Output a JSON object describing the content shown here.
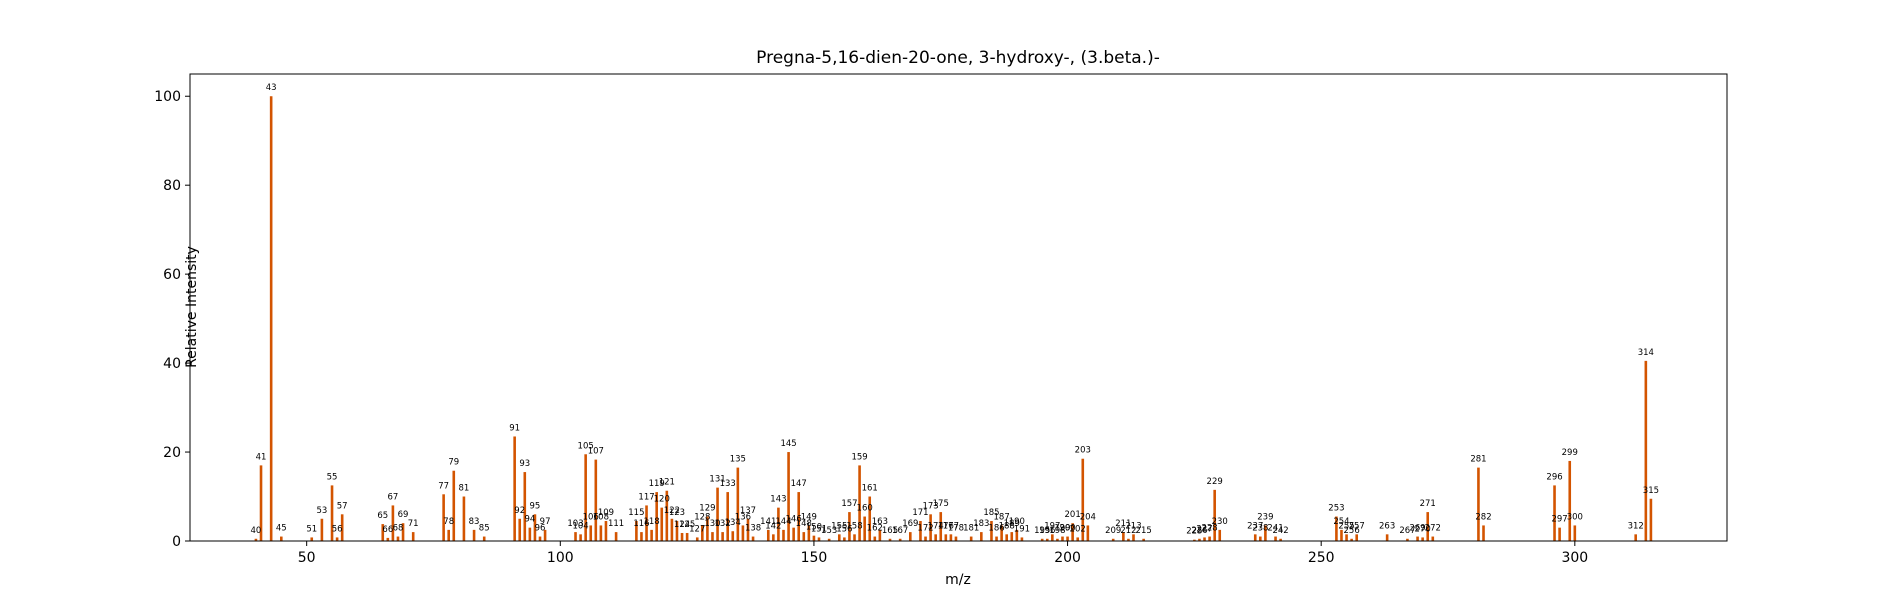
{
  "chart_data": {
    "type": "bar",
    "title": "Pregna-5,16-dien-20-one, 3-hydroxy-, (3.beta.)-",
    "xlabel": "m/z",
    "ylabel": "Relative Intensity",
    "xlim": [
      27,
      330
    ],
    "ylim": [
      0,
      105
    ],
    "xticks": [
      50,
      100,
      150,
      200,
      250,
      300
    ],
    "yticks": [
      0,
      20,
      40,
      60,
      80,
      100
    ],
    "grid": false,
    "bar_color": "#d35400",
    "peaks": [
      {
        "mz": 40,
        "intensity": 0.5
      },
      {
        "mz": 41,
        "intensity": 17
      },
      {
        "mz": 43,
        "intensity": 100
      },
      {
        "mz": 45,
        "intensity": 1
      },
      {
        "mz": 51,
        "intensity": 0.8
      },
      {
        "mz": 53,
        "intensity": 5
      },
      {
        "mz": 55,
        "intensity": 12.5
      },
      {
        "mz": 56,
        "intensity": 0.8
      },
      {
        "mz": 57,
        "intensity": 6
      },
      {
        "mz": 65,
        "intensity": 3.8
      },
      {
        "mz": 66,
        "intensity": 0.7
      },
      {
        "mz": 67,
        "intensity": 8
      },
      {
        "mz": 68,
        "intensity": 1
      },
      {
        "mz": 69,
        "intensity": 4
      },
      {
        "mz": 71,
        "intensity": 2
      },
      {
        "mz": 77,
        "intensity": 10.5
      },
      {
        "mz": 78,
        "intensity": 2.5
      },
      {
        "mz": 79,
        "intensity": 15.8
      },
      {
        "mz": 81,
        "intensity": 10
      },
      {
        "mz": 83,
        "intensity": 2.5
      },
      {
        "mz": 85,
        "intensity": 1
      },
      {
        "mz": 91,
        "intensity": 23.5
      },
      {
        "mz": 92,
        "intensity": 5
      },
      {
        "mz": 93,
        "intensity": 15.5
      },
      {
        "mz": 94,
        "intensity": 3
      },
      {
        "mz": 95,
        "intensity": 6
      },
      {
        "mz": 96,
        "intensity": 1
      },
      {
        "mz": 97,
        "intensity": 2.5
      },
      {
        "mz": 103,
        "intensity": 2
      },
      {
        "mz": 104,
        "intensity": 1.5
      },
      {
        "mz": 105,
        "intensity": 19.5
      },
      {
        "mz": 106,
        "intensity": 3.5
      },
      {
        "mz": 107,
        "intensity": 18.3
      },
      {
        "mz": 108,
        "intensity": 3.5
      },
      {
        "mz": 109,
        "intensity": 4.5
      },
      {
        "mz": 111,
        "intensity": 2
      },
      {
        "mz": 115,
        "intensity": 4.5
      },
      {
        "mz": 116,
        "intensity": 2
      },
      {
        "mz": 117,
        "intensity": 8
      },
      {
        "mz": 118,
        "intensity": 2.5
      },
      {
        "mz": 119,
        "intensity": 11
      },
      {
        "mz": 120,
        "intensity": 7.5
      },
      {
        "mz": 121,
        "intensity": 11.3
      },
      {
        "mz": 122,
        "intensity": 5
      },
      {
        "mz": 123,
        "intensity": 4.5
      },
      {
        "mz": 124,
        "intensity": 1.8
      },
      {
        "mz": 125,
        "intensity": 1.8
      },
      {
        "mz": 127,
        "intensity": 0.8
      },
      {
        "mz": 128,
        "intensity": 3.5
      },
      {
        "mz": 129,
        "intensity": 5.5
      },
      {
        "mz": 130,
        "intensity": 2
      },
      {
        "mz": 131,
        "intensity": 12
      },
      {
        "mz": 132,
        "intensity": 2
      },
      {
        "mz": 133,
        "intensity": 11
      },
      {
        "mz": 134,
        "intensity": 2.2
      },
      {
        "mz": 135,
        "intensity": 16.5
      },
      {
        "mz": 136,
        "intensity": 3.5
      },
      {
        "mz": 137,
        "intensity": 5
      },
      {
        "mz": 138,
        "intensity": 1
      },
      {
        "mz": 141,
        "intensity": 2.5
      },
      {
        "mz": 142,
        "intensity": 1.5
      },
      {
        "mz": 143,
        "intensity": 7.5
      },
      {
        "mz": 144,
        "intensity": 2.5
      },
      {
        "mz": 145,
        "intensity": 20
      },
      {
        "mz": 146,
        "intensity": 3
      },
      {
        "mz": 147,
        "intensity": 11
      },
      {
        "mz": 148,
        "intensity": 2
      },
      {
        "mz": 149,
        "intensity": 3.5
      },
      {
        "mz": 150,
        "intensity": 1.2
      },
      {
        "mz": 151,
        "intensity": 0.8
      },
      {
        "mz": 153,
        "intensity": 0.5
      },
      {
        "mz": 155,
        "intensity": 1.5
      },
      {
        "mz": 156,
        "intensity": 0.8
      },
      {
        "mz": 157,
        "intensity": 6.5
      },
      {
        "mz": 158,
        "intensity": 1.5
      },
      {
        "mz": 159,
        "intensity": 17
      },
      {
        "mz": 160,
        "intensity": 5.5
      },
      {
        "mz": 161,
        "intensity": 10
      },
      {
        "mz": 162,
        "intensity": 1
      },
      {
        "mz": 163,
        "intensity": 2.5
      },
      {
        "mz": 165,
        "intensity": 0.5
      },
      {
        "mz": 167,
        "intensity": 0.5
      },
      {
        "mz": 169,
        "intensity": 2
      },
      {
        "mz": 171,
        "intensity": 4.5
      },
      {
        "mz": 172,
        "intensity": 1
      },
      {
        "mz": 173,
        "intensity": 6
      },
      {
        "mz": 174,
        "intensity": 1.5
      },
      {
        "mz": 175,
        "intensity": 6.5
      },
      {
        "mz": 176,
        "intensity": 1.5
      },
      {
        "mz": 177,
        "intensity": 1.5
      },
      {
        "mz": 178,
        "intensity": 1
      },
      {
        "mz": 181,
        "intensity": 1
      },
      {
        "mz": 183,
        "intensity": 2
      },
      {
        "mz": 185,
        "intensity": 4.5
      },
      {
        "mz": 186,
        "intensity": 1
      },
      {
        "mz": 187,
        "intensity": 3.5
      },
      {
        "mz": 188,
        "intensity": 1.5
      },
      {
        "mz": 189,
        "intensity": 2
      },
      {
        "mz": 190,
        "intensity": 2.5
      },
      {
        "mz": 191,
        "intensity": 0.8
      },
      {
        "mz": 195,
        "intensity": 0.5
      },
      {
        "mz": 196,
        "intensity": 0.5
      },
      {
        "mz": 197,
        "intensity": 1.5
      },
      {
        "mz": 198,
        "intensity": 0.5
      },
      {
        "mz": 199,
        "intensity": 1
      },
      {
        "mz": 200,
        "intensity": 1
      },
      {
        "mz": 201,
        "intensity": 4
      },
      {
        "mz": 202,
        "intensity": 0.8
      },
      {
        "mz": 203,
        "intensity": 18.5
      },
      {
        "mz": 204,
        "intensity": 3.5
      },
      {
        "mz": 209,
        "intensity": 0.5
      },
      {
        "mz": 211,
        "intensity": 2
      },
      {
        "mz": 212,
        "intensity": 0.5
      },
      {
        "mz": 213,
        "intensity": 1.5
      },
      {
        "mz": 215,
        "intensity": 0.5
      },
      {
        "mz": 225,
        "intensity": 0.3
      },
      {
        "mz": 226,
        "intensity": 0.5
      },
      {
        "mz": 227,
        "intensity": 0.8
      },
      {
        "mz": 228,
        "intensity": 1
      },
      {
        "mz": 229,
        "intensity": 11.5
      },
      {
        "mz": 230,
        "intensity": 2.5
      },
      {
        "mz": 237,
        "intensity": 1.5
      },
      {
        "mz": 238,
        "intensity": 1
      },
      {
        "mz": 239,
        "intensity": 3.5
      },
      {
        "mz": 241,
        "intensity": 1
      },
      {
        "mz": 242,
        "intensity": 0.5
      },
      {
        "mz": 253,
        "intensity": 5.5
      },
      {
        "mz": 254,
        "intensity": 2.5
      },
      {
        "mz": 255,
        "intensity": 1.5
      },
      {
        "mz": 256,
        "intensity": 0.5
      },
      {
        "mz": 257,
        "intensity": 1.5
      },
      {
        "mz": 263,
        "intensity": 1.5
      },
      {
        "mz": 267,
        "intensity": 0.5
      },
      {
        "mz": 269,
        "intensity": 1
      },
      {
        "mz": 270,
        "intensity": 0.8
      },
      {
        "mz": 271,
        "intensity": 6.5
      },
      {
        "mz": 272,
        "intensity": 1
      },
      {
        "mz": 281,
        "intensity": 16.5
      },
      {
        "mz": 282,
        "intensity": 3.5
      },
      {
        "mz": 296,
        "intensity": 12.5
      },
      {
        "mz": 297,
        "intensity": 3
      },
      {
        "mz": 299,
        "intensity": 18
      },
      {
        "mz": 300,
        "intensity": 3.5
      },
      {
        "mz": 312,
        "intensity": 1.5
      },
      {
        "mz": 314,
        "intensity": 40.5
      },
      {
        "mz": 315,
        "intensity": 9.5
      }
    ]
  }
}
